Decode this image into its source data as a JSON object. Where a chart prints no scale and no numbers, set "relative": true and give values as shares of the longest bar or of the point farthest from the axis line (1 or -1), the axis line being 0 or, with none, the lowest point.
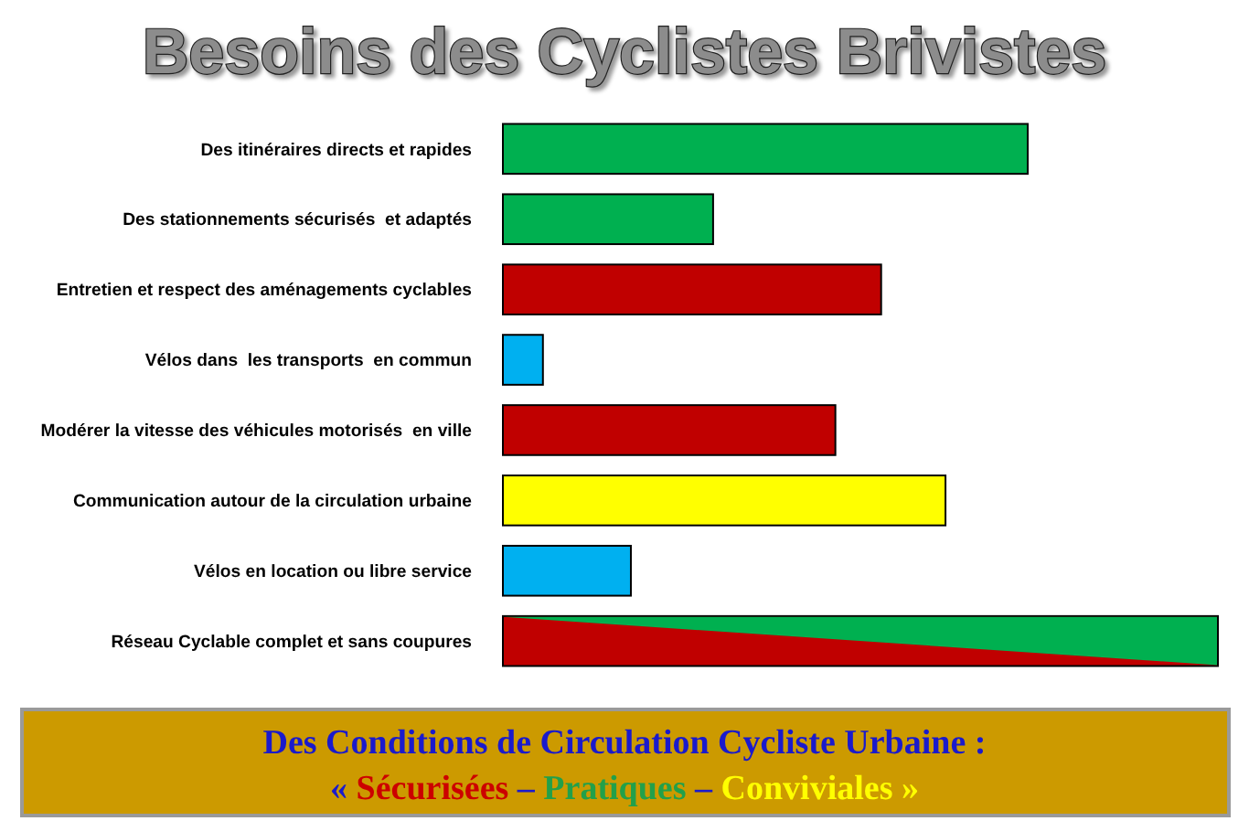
{
  "chart_data": {
    "type": "bar",
    "orientation": "horizontal",
    "relative": true,
    "title": "Besoins des Cyclistes Brivistes",
    "categories": [
      "Des itinéraires directs et rapides",
      "Des stationnements sécurisés  et adaptés",
      "Entretien et respect des aménagements cyclables",
      "Vélos dans  les transports  en commun",
      "Modérer la vitesse des véhicules motorisés  en ville",
      "Communication autour de la circulation urbaine",
      "Vélos en location ou libre service",
      "Réseau Cyclable complet et sans coupures"
    ],
    "values": [
      0.734,
      0.294,
      0.529,
      0.056,
      0.465,
      0.619,
      0.179,
      1
    ],
    "colors": [
      "#00b050",
      "#00b050",
      "#c00000",
      "#00b0f0",
      "#c00000",
      "#ffff00",
      "#00b0f0",
      "#c00000"
    ],
    "annotations": [
      "Des Conditions de Circulation Cycliste Urbaine :",
      "« Sécurisées – Pratiques – Conviviales »"
    ]
  }
}
